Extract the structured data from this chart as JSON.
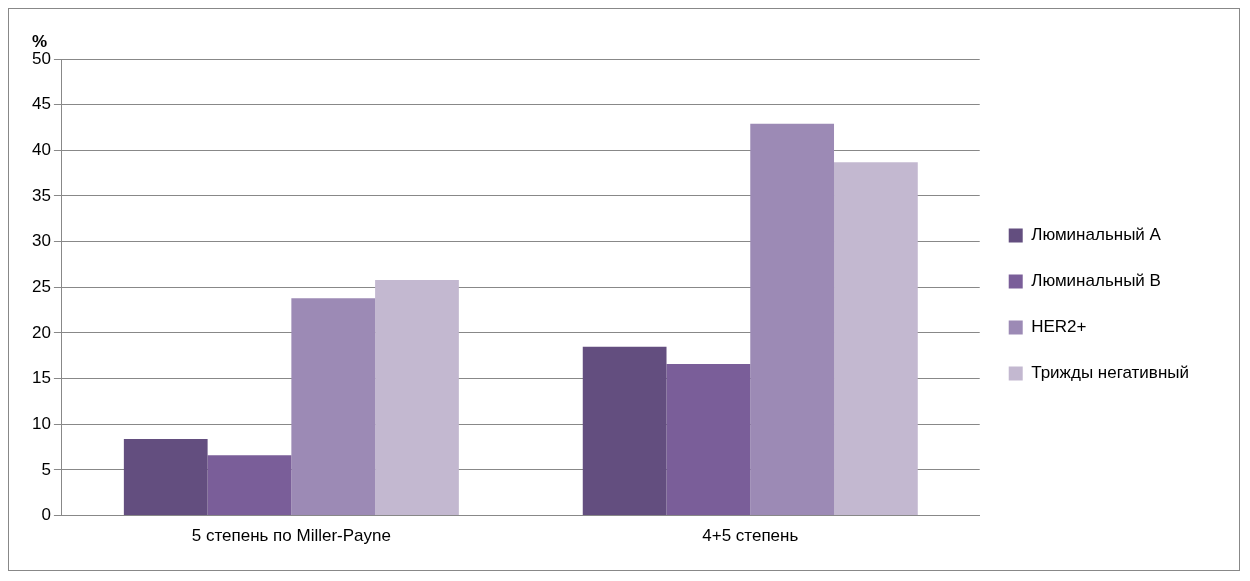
{
  "chart_data": {
    "type": "bar",
    "ylabel": "%",
    "categories": [
      "5 степень по Miller-Payne",
      "4+5 степень"
    ],
    "series": [
      {
        "name": "Люминальный А",
        "color": "#634e7f",
        "values": [
          8.4,
          18.5
        ]
      },
      {
        "name": "Люминальный В",
        "color": "#7a5e99",
        "values": [
          6.6,
          16.6
        ]
      },
      {
        "name": "HER2+",
        "color": "#9c8ab5",
        "values": [
          23.8,
          42.9
        ]
      },
      {
        "name": "Трижды негативный",
        "color": "#c3b8d0",
        "values": [
          25.8,
          38.7
        ]
      }
    ],
    "ylim": [
      0,
      50
    ],
    "yticks": [
      0,
      5,
      10,
      15,
      20,
      25,
      30,
      35,
      40,
      45,
      50
    ],
    "grid": "y",
    "legend": "right"
  }
}
